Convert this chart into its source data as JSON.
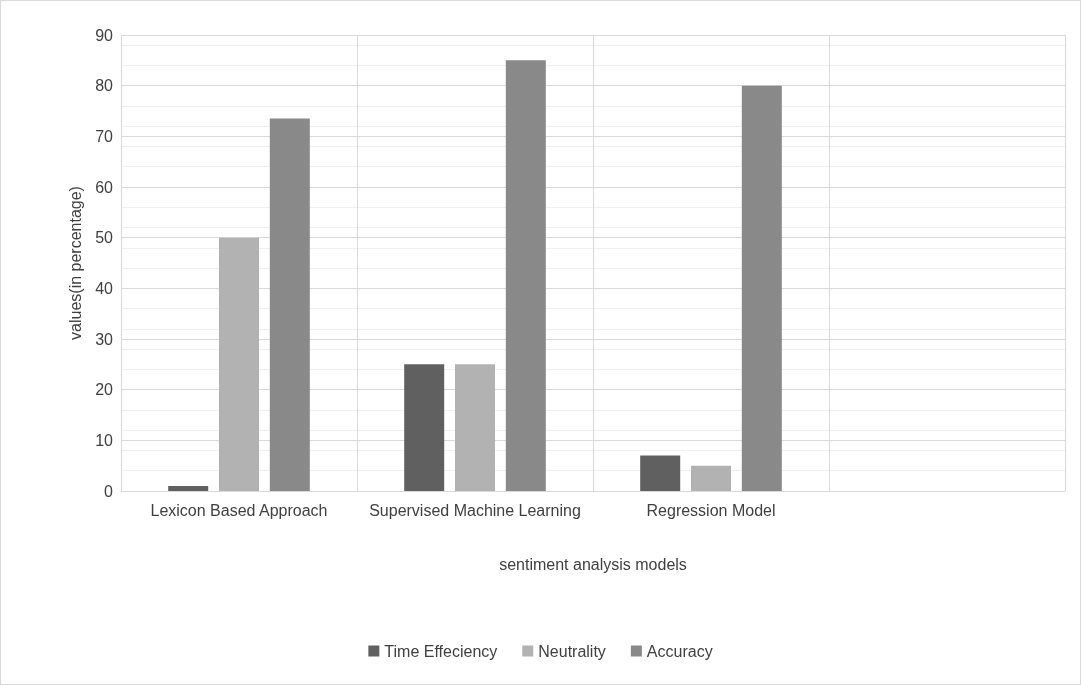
{
  "chart_data": {
    "type": "bar",
    "xlabel": "sentiment analysis models",
    "ylabel": "values(in percentage)",
    "categories": [
      "Lexicon Based Approach",
      "Supervised Machine Learning",
      "Regression Model",
      null
    ],
    "series": [
      {
        "name": "Time Effeciency",
        "color": "#606060",
        "values": [
          1,
          25,
          7,
          null
        ]
      },
      {
        "name": "Neutrality",
        "color": "#b2b2b2",
        "values": [
          50,
          25,
          5,
          null
        ]
      },
      {
        "name": "Accuracy",
        "color": "#898989",
        "values": [
          73.5,
          85,
          80,
          null
        ]
      }
    ],
    "ylim": [
      0,
      90
    ],
    "yticks": [
      0,
      10,
      20,
      30,
      40,
      50,
      60,
      70,
      80,
      90
    ],
    "grid": true,
    "legend": "bottom"
  }
}
